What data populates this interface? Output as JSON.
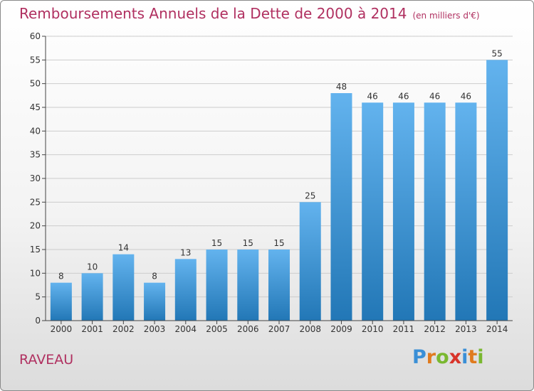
{
  "title": "Remboursements Annuels de la Dette de 2000 à 2014",
  "unit": "(en milliers d'€)",
  "commune": "RAVEAU",
  "logo": {
    "text": "Proxiti",
    "letters": [
      "P",
      "r",
      "o",
      "x",
      "i",
      "t",
      "i"
    ],
    "colors": [
      "#3a8fd6",
      "#e07b1e",
      "#7ab830",
      "#d8342a",
      "#3a8fd6",
      "#e07b1e",
      "#7ab830"
    ]
  },
  "colors": {
    "title": "#b03060",
    "bar_light": "#63b3ee",
    "bar_dark": "#2277b6",
    "grid": "#cccccc"
  },
  "chart_data": {
    "type": "bar",
    "categories": [
      "2000",
      "2001",
      "2002",
      "2003",
      "2004",
      "2005",
      "2006",
      "2007",
      "2008",
      "2009",
      "2010",
      "2011",
      "2012",
      "2013",
      "2014"
    ],
    "values": [
      8,
      10,
      14,
      8,
      13,
      15,
      15,
      15,
      25,
      48,
      46,
      46,
      46,
      46,
      55
    ],
    "ylim": [
      0,
      60
    ],
    "yticks": [
      0,
      5,
      10,
      15,
      20,
      25,
      30,
      35,
      40,
      45,
      50,
      55,
      60
    ],
    "grid": true,
    "data_labels": true
  }
}
